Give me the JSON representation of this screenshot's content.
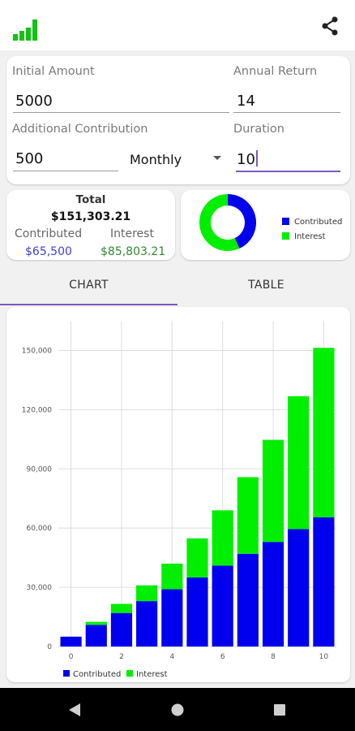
{
  "colors": {
    "contributed": "#0000ee",
    "interest": "#00ee00",
    "accent": "#7e57c2",
    "contributed_text": "#3f3fd8",
    "interest_text": "#2e8b2e"
  },
  "appbar": {
    "logo_icon": "bar-chart-logo-icon",
    "share_icon": "share-icon"
  },
  "form": {
    "initial_amount": {
      "label": "Initial Amount",
      "value": "5000"
    },
    "annual_return": {
      "label": "Annual Return",
      "value": "14"
    },
    "additional_contribution": {
      "label": "Additional Contribution",
      "value": "500"
    },
    "frequency": {
      "value": "Monthly"
    },
    "duration": {
      "label": "Duration",
      "value": "10"
    }
  },
  "summary": {
    "total_label": "Total",
    "total_value": "$151,303.21",
    "contributed_label": "Contributed",
    "contributed_value": "$65,500",
    "interest_label": "Interest",
    "interest_value": "$85,803.21"
  },
  "donut": {
    "contributed": 65500,
    "interest": 85803.21,
    "legend": [
      "Contributed",
      "Interest"
    ]
  },
  "tabs": [
    {
      "label": "CHART",
      "selected": true
    },
    {
      "label": "TABLE",
      "selected": false
    }
  ],
  "chart_data": {
    "type": "bar",
    "stacked": true,
    "x": [
      0,
      1,
      2,
      3,
      4,
      5,
      6,
      7,
      8,
      9,
      10
    ],
    "xticks": [
      "0",
      "2",
      "4",
      "6",
      "8",
      "10"
    ],
    "yticks": [
      "0",
      "30,000",
      "60,000",
      "90,000",
      "120,000",
      "150,000"
    ],
    "ylim": [
      0,
      165000
    ],
    "series": [
      {
        "name": "Contributed",
        "values": [
          5000,
          11000,
          17000,
          23000,
          29000,
          35000,
          41000,
          47000,
          53000,
          59500,
          65500
        ]
      },
      {
        "name": "Interest",
        "values": [
          0,
          1500,
          4600,
          8000,
          13000,
          19800,
          28000,
          38800,
          51700,
          67300,
          85800
        ]
      }
    ],
    "grid": true,
    "legend_position": "bottom-left"
  },
  "navbar": {
    "back_icon": "back-icon",
    "home_icon": "home-icon",
    "recents_icon": "recents-icon"
  }
}
